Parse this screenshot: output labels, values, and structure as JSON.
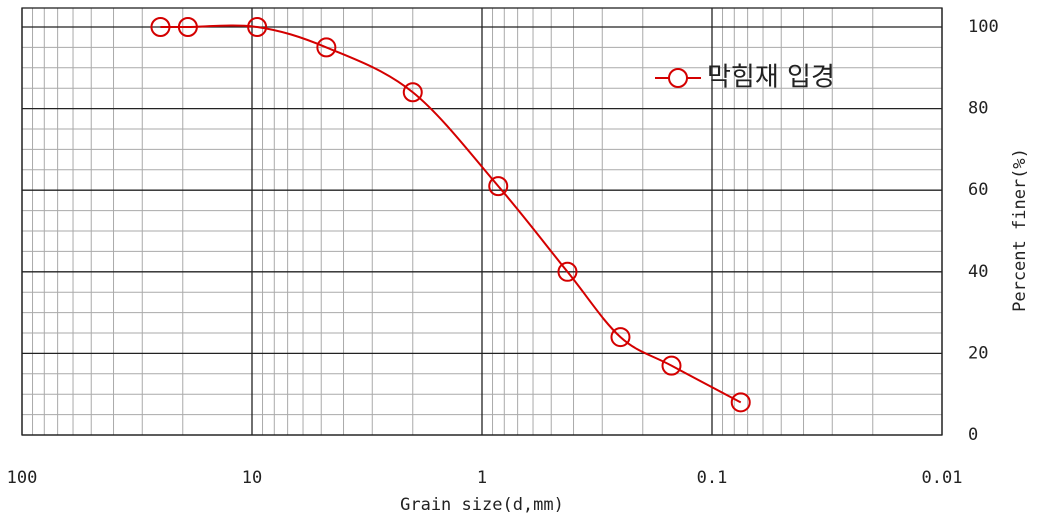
{
  "chart_data": {
    "type": "line",
    "x_label": "Grain size(d,mm)",
    "y_label": "Percent finer(%)",
    "log_x": true,
    "xlim": [
      100,
      0.01
    ],
    "xticks": [
      100,
      10,
      1,
      0.1,
      0.01
    ],
    "ylim": [
      0,
      100
    ],
    "yticks": [
      0,
      20,
      40,
      60,
      80,
      100
    ],
    "grid": true,
    "legend": "upper right",
    "x": [
      25,
      19,
      9.5,
      4.75,
      2.0,
      0.85,
      0.425,
      0.25,
      0.15,
      0.075
    ],
    "series": [
      {
        "name": "막힘재 입경",
        "color": "#d40000",
        "values": [
          100,
          100,
          100,
          95,
          84,
          61,
          40,
          24,
          17,
          8
        ]
      }
    ]
  }
}
